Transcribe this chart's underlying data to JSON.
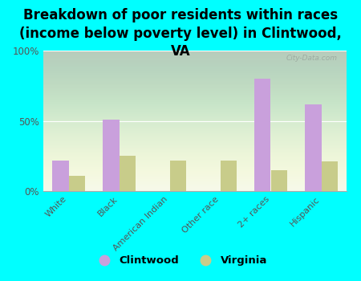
{
  "title": "Breakdown of poor residents within races\n(income below poverty level) in Clintwood,\nVA",
  "categories": [
    "White",
    "Black",
    "American Indian",
    "Other race",
    "2+ races",
    "Hispanic"
  ],
  "clintwood_values": [
    22,
    51,
    0,
    0,
    80,
    62
  ],
  "virginia_values": [
    11,
    25,
    22,
    22,
    15,
    21
  ],
  "clintwood_color": "#c9a0dc",
  "virginia_color": "#c8cc8a",
  "background_color": "#00ffff",
  "plot_bg_color": "#f4f8ec",
  "ylim": [
    0,
    100
  ],
  "yticks": [
    0,
    50,
    100
  ],
  "ytick_labels": [
    "0%",
    "50%",
    "100%"
  ],
  "watermark": "City-Data.com",
  "bar_width": 0.32,
  "title_fontsize": 12,
  "legend_labels": [
    "Clintwood",
    "Virginia"
  ]
}
